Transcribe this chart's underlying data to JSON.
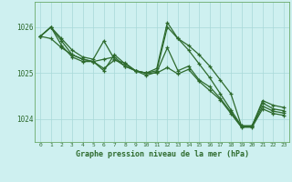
{
  "x": [
    0,
    1,
    2,
    3,
    4,
    5,
    6,
    7,
    8,
    9,
    10,
    11,
    12,
    13,
    14,
    15,
    16,
    17,
    18,
    19,
    20,
    21,
    22,
    23
  ],
  "series": [
    [
      1025.8,
      1026.0,
      1025.75,
      1025.5,
      1025.35,
      1025.3,
      1025.7,
      1025.3,
      1025.15,
      1025.05,
      1025.0,
      1025.1,
      1026.1,
      1025.75,
      1025.6,
      1025.4,
      1025.15,
      1024.85,
      1024.55,
      1023.85,
      1023.85,
      1024.4,
      1024.3,
      1024.25
    ],
    [
      1025.8,
      1026.0,
      1025.7,
      1025.4,
      1025.3,
      1025.25,
      1025.05,
      1025.4,
      1025.2,
      1025.05,
      1025.0,
      1025.05,
      1026.0,
      1025.75,
      1025.5,
      1025.2,
      1024.9,
      1024.55,
      1024.2,
      1023.85,
      1023.85,
      1024.35,
      1024.22,
      1024.18
    ],
    [
      1025.8,
      1026.0,
      1025.6,
      1025.35,
      1025.25,
      1025.25,
      1025.3,
      1025.35,
      1025.15,
      1025.05,
      1024.95,
      1025.02,
      1025.55,
      1025.05,
      1025.15,
      1024.85,
      1024.7,
      1024.45,
      1024.15,
      1023.83,
      1023.83,
      1024.28,
      1024.17,
      1024.13
    ],
    [
      1025.8,
      1025.75,
      1025.55,
      1025.4,
      1025.3,
      1025.25,
      1025.1,
      1025.28,
      1025.22,
      1025.05,
      1025.0,
      1025.0,
      1025.12,
      1024.98,
      1025.08,
      1024.82,
      1024.62,
      1024.42,
      1024.12,
      1023.82,
      1023.82,
      1024.22,
      1024.12,
      1024.08
    ]
  ],
  "line_color": "#2d6a2d",
  "bg_color": "#cef0f0",
  "grid_color": "#a8d8d8",
  "xlabel": "Graphe pression niveau de la mer (hPa)",
  "ylim": [
    1023.5,
    1026.55
  ],
  "yticks": [
    1024.0,
    1025.0,
    1026.0
  ],
  "xticks": [
    0,
    1,
    2,
    3,
    4,
    5,
    6,
    7,
    8,
    9,
    10,
    11,
    12,
    13,
    14,
    15,
    16,
    17,
    18,
    19,
    20,
    21,
    22,
    23
  ]
}
